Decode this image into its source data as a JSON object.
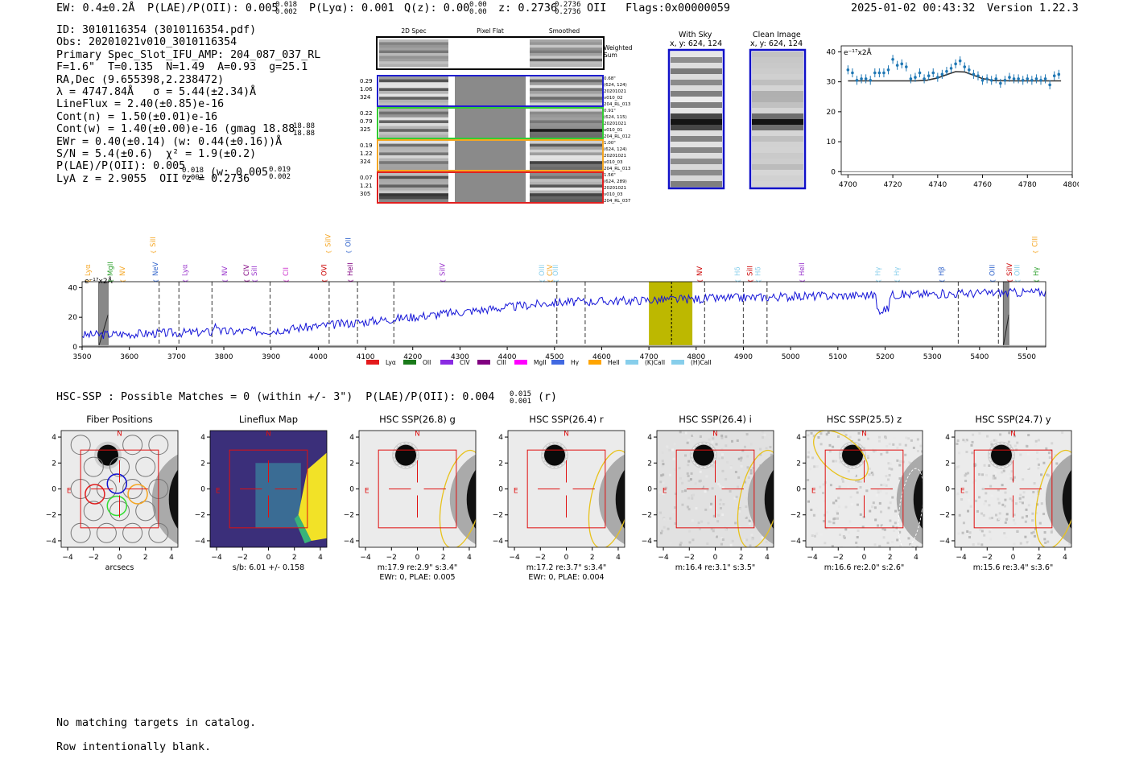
{
  "header": {
    "ew": "EW: 0.4±0.2Å",
    "plae": "P(LAE)/P(OII): 0.005",
    "plae_hi": "0.018",
    "plae_lo": "0.002",
    "plya": "P(Lyα): 0.001",
    "qz": "Q(z): 0.00",
    "qz_hi": "0.00",
    "qz_lo": "0.00",
    "z": "z: 0.2736",
    "z_hi": "0.2736",
    "z_lo": "0.2736",
    "z_line": "OII",
    "flags": "Flags:0x00000059",
    "timestamp": "2025-01-02 00:43:32",
    "version": "Version 1.22.3"
  },
  "info": {
    "lines": [
      "ID: 3010116354 (3010116354.pdf)",
      "Obs: 20201021v010_3010116354",
      "Primary Spec_Slot_IFU_AMP: 204_087_037_RL",
      "F=1.6\"  T=0.135  N=1.49  A=0.93  g=25.1",
      "RA,Dec (9.655398,2.238472)",
      "λ = 4747.84Å   σ = 5.44(±2.34)Å",
      "LineFlux = 2.40(±0.85)e-16",
      "Cont(n) = 1.50(±0.01)e-16",
      "Cont(w) = 1.40(±0.00)e-16 (gmag 18.88",
      "EWr = 0.40(±0.14) (w: 0.44(±0.16))Å",
      "S/N = 5.4(±0.6)  χ² = 1.9(±0.2)",
      "P(LAE)/P(OII): 0.005",
      "LyA z = 2.9055  OII z = 0.2736"
    ],
    "gmag_hi": "18.88",
    "gmag_lo": "18.88",
    "plae_hi": "0.018",
    "plae_lo": "0.002",
    "plae_w": "(w: 0.005",
    "plae_w_hi": "0.019",
    "plae_w_lo": "0.002"
  },
  "cutouts": {
    "col_labels": [
      "2D Spec",
      "Pixel Flat",
      "Smoothed"
    ],
    "weighted_sum": "Weighted Sum",
    "rows": [
      {
        "left": [
          "0.29",
          "1.06",
          "324"
        ],
        "right": [
          "0.68\"",
          "(624, 124)",
          "20201021",
          "v010_02",
          "204_RL_013"
        ],
        "color": "#1f1fcf"
      },
      {
        "left": [
          "0.22",
          "0.79",
          "325"
        ],
        "right": [
          "0.91\"",
          "(624, 115)",
          "20201021",
          "v010_01",
          "204_RL_012"
        ],
        "color": "#33cc33"
      },
      {
        "left": [
          "0.19",
          "1.22",
          "324"
        ],
        "right": [
          "1.00\"",
          "(624, 124)",
          "20201021",
          "v010_03",
          "204_RL_013"
        ],
        "color": "#f5a623"
      },
      {
        "left": [
          "0.07",
          "1.21",
          "305"
        ],
        "right": [
          "1.56\"",
          "(624, 289)",
          "20201021",
          "v010_03",
          "204_RL_037"
        ],
        "color": "#e02020"
      }
    ]
  },
  "sky_panels": {
    "with_sky": "With Sky",
    "with_sky_xy": "x, y: 624, 124",
    "clean": "Clean Image",
    "clean_xy": "x, y: 624, 124"
  },
  "zoom_chart": {
    "type": "scatter",
    "ylabel": "e⁻¹⁷x2Å",
    "xlim": [
      4697,
      4800
    ],
    "ylim": [
      -1,
      42
    ],
    "xticks": [
      4700,
      4720,
      4740,
      4760,
      4780,
      4800
    ],
    "yticks": [
      0,
      10,
      20,
      30,
      40
    ],
    "x": [
      4700,
      4702,
      4704,
      4706,
      4708,
      4710,
      4712,
      4714,
      4716,
      4718,
      4720,
      4722,
      4724,
      4726,
      4728,
      4730,
      4732,
      4734,
      4736,
      4738,
      4740,
      4742,
      4744,
      4746,
      4748,
      4750,
      4752,
      4754,
      4756,
      4758,
      4760,
      4762,
      4764,
      4766,
      4768,
      4770,
      4772,
      4774,
      4776,
      4778,
      4780,
      4782,
      4784,
      4786,
      4788,
      4790,
      4792,
      4794
    ],
    "y": [
      34,
      33,
      30.5,
      31,
      31,
      30.5,
      33,
      33,
      33,
      34,
      37.5,
      35.5,
      36,
      35,
      31,
      31.5,
      33,
      31,
      32,
      33,
      31.5,
      32.5,
      33.5,
      34.5,
      36,
      37,
      35,
      34,
      32.5,
      32,
      30.5,
      31,
      30.5,
      31,
      29.5,
      30.5,
      31.5,
      31,
      31,
      30.5,
      31,
      30.5,
      31,
      30.5,
      31,
      29,
      32,
      32.5
    ],
    "model_x": [
      4700,
      4720,
      4730,
      4735,
      4740,
      4744,
      4748,
      4752,
      4756,
      4760,
      4765,
      4775,
      4795
    ],
    "model_y": [
      30.3,
      30.3,
      30.3,
      30.5,
      31.3,
      32.4,
      33.4,
      33.3,
      32.2,
      31.1,
      30.4,
      30.3,
      30.3
    ]
  },
  "spectrum_chart": {
    "type": "line",
    "ylabel": "e⁻¹⁷x2Å",
    "xlim": [
      3500,
      5540
    ],
    "ylim": [
      0,
      44
    ],
    "xticks": [
      3500,
      3600,
      3700,
      3800,
      3900,
      4000,
      4100,
      4200,
      4300,
      4400,
      4500,
      4600,
      4700,
      4800,
      4900,
      5000,
      5100,
      5200,
      5300,
      5400,
      5500
    ],
    "yticks": [
      0,
      20,
      40
    ],
    "highlight": [
      4700,
      4792
    ],
    "line_center": 4747.8,
    "sky_bands": [
      [
        3535,
        3555
      ],
      [
        5450,
        5462
      ]
    ],
    "dashed_lines": [
      3663,
      3705,
      3775,
      3898,
      4023,
      4083,
      4160,
      4505,
      4565,
      4818,
      4900,
      4950,
      5355,
      5440
    ],
    "line_labels": [
      {
        "name": "Lyα",
        "wave": 3517,
        "color": "#f5a623",
        "tier": 0
      },
      {
        "name": "MgII",
        "wave": 3565,
        "color": "#2ca02c",
        "tier": 0
      },
      {
        "name": "NV",
        "wave": 3590,
        "color": "#f5a623",
        "tier": 0
      },
      {
        "name": "SiII",
        "wave": 3655,
        "color": "#f5a623",
        "tier": 1
      },
      {
        "name": "NeV",
        "wave": 3660,
        "color": "#3366cc",
        "tier": 0
      },
      {
        "name": "Lyα",
        "wave": 3722,
        "color": "#9933cc",
        "tier": 0
      },
      {
        "name": "NV",
        "wave": 3807,
        "color": "#9933cc",
        "tier": 0
      },
      {
        "name": "CIV",
        "wave": 3853,
        "color": "#800080",
        "tier": 0
      },
      {
        "name": "SiII",
        "wave": 3870,
        "color": "#9933cc",
        "tier": 0
      },
      {
        "name": "CII",
        "wave": 3936,
        "color": "#cc33cc",
        "tier": 0
      },
      {
        "name": "OVI",
        "wave": 4017,
        "color": "#cc0000",
        "tier": 0
      },
      {
        "name": "SiIV",
        "wave": 4026,
        "color": "#f5a623",
        "tier": 1
      },
      {
        "name": "OII",
        "wave": 4068,
        "color": "#3366cc",
        "tier": 1
      },
      {
        "name": "HeII",
        "wave": 4073,
        "color": "#800080",
        "tier": 0
      },
      {
        "name": "SiIV",
        "wave": 4268,
        "color": "#9933cc",
        "tier": 0
      },
      {
        "name": "OIII",
        "wave": 4478,
        "color": "#87ceeb",
        "tier": 0
      },
      {
        "name": "CIV",
        "wave": 4495,
        "color": "#f5a623",
        "tier": 0
      },
      {
        "name": "OIII",
        "wave": 4507,
        "color": "#87ceeb",
        "tier": 0
      },
      {
        "name": "NV",
        "wave": 4812,
        "color": "#cc0000",
        "tier": 0
      },
      {
        "name": "Hδ",
        "wave": 4892,
        "color": "#87ceeb",
        "tier": 0
      },
      {
        "name": "SiII",
        "wave": 4919,
        "color": "#cc0000",
        "tier": 0
      },
      {
        "name": "Hδ",
        "wave": 4936,
        "color": "#87ceeb",
        "tier": 0
      },
      {
        "name": "HeII",
        "wave": 5029,
        "color": "#9933cc",
        "tier": 0
      },
      {
        "name": "Hγ",
        "wave": 5190,
        "color": "#87ceeb",
        "tier": 0
      },
      {
        "name": "Hγ",
        "wave": 5230,
        "color": "#87ceeb",
        "tier": 0
      },
      {
        "name": "Hβ",
        "wave": 5324,
        "color": "#3366cc",
        "tier": 0
      },
      {
        "name": "OIII",
        "wave": 5432,
        "color": "#3366cc",
        "tier": 0
      },
      {
        "name": "SiIV",
        "wave": 5468,
        "color": "#cc0000",
        "tier": 0
      },
      {
        "name": "OIII",
        "wave": 5485,
        "color": "#87ceeb",
        "tier": 0
      },
      {
        "name": "CIII",
        "wave": 5522,
        "color": "#f5a623",
        "tier": 1
      },
      {
        "name": "Hγ",
        "wave": 5525,
        "color": "#2ca02c",
        "tier": 0
      }
    ],
    "legend": [
      {
        "name": "Lyα",
        "color": "#e41a1c"
      },
      {
        "name": "OII",
        "color": "#1a7a1a"
      },
      {
        "name": "CIV",
        "color": "#8a2be2"
      },
      {
        "name": "CIII",
        "color": "#800080"
      },
      {
        "name": "MgII",
        "color": "#ff00ff"
      },
      {
        "name": "Hγ",
        "color": "#4169e1"
      },
      {
        "name": "HeII",
        "color": "#ffa500"
      },
      {
        "name": "(K)CaII",
        "color": "#87ceeb"
      },
      {
        "name": "(H)CaII",
        "color": "#87ceeb"
      }
    ]
  },
  "hsc": {
    "title": "HSC-SSP : Possible Matches = 0 (within +/- 3\")  P(LAE)/P(OII): 0.004",
    "title_hi": "0.015",
    "title_lo": "0.001",
    "title_band": "(r)",
    "axis_ticks": [
      -4,
      -2,
      0,
      2,
      4
    ],
    "panels": [
      {
        "title": "Fiber Positions",
        "type": "fiber",
        "caption1": "arcsecs",
        "caption2": ""
      },
      {
        "title": "Lineflux Map",
        "type": "lineflux",
        "caption1": "s/b: 6.01 +/- 0.158",
        "caption2": ""
      },
      {
        "title": "HSC SSP(26.8) g",
        "type": "img_g",
        "caption1": "m:17.9  re:2.9\"  s:3.4\"",
        "caption2": "EWr: 0, PLAE: 0.005"
      },
      {
        "title": "HSC SSP(26.4) r",
        "type": "img_r",
        "caption1": "m:17.2  re:3.7\"  s:3.4\"",
        "caption2": "EWr: 0, PLAE: 0.004"
      },
      {
        "title": "HSC SSP(26.4) i",
        "type": "img_i",
        "caption1": "m:16.4  re:3.1\"  s:3.5\"",
        "caption2": ""
      },
      {
        "title": "HSC SSP(25.5) z",
        "type": "img_z",
        "caption1": "m:16.6  re:2.0\"  s:2.6\"",
        "caption2": ""
      },
      {
        "title": "HSC SSP(24.7) y",
        "type": "img_y",
        "caption1": "m:15.6  re:3.4\"  s:3.6\"",
        "caption2": ""
      }
    ],
    "north": "N",
    "east": "E"
  },
  "footer": {
    "line1": "No matching targets in catalog.",
    "line2": "Row intentionally blank."
  }
}
